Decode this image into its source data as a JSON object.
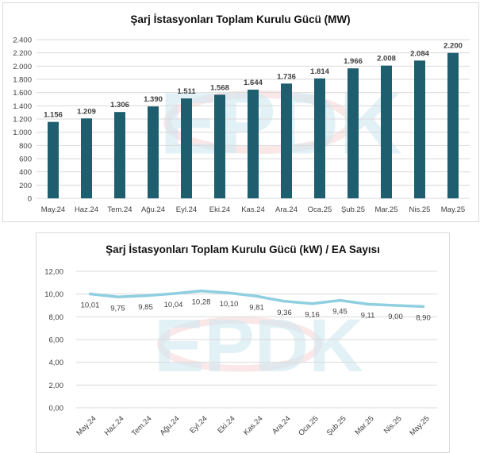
{
  "chart_data": [
    {
      "type": "bar",
      "title": "Şarj İstasyonları Toplam Kurulu Gücü (MW)",
      "categories": [
        "May.24",
        "Haz.24",
        "Tem.24",
        "Ağu.24",
        "Eyl.24",
        "Eki.24",
        "Kas.24",
        "Ara.24",
        "Oca.25",
        "Şub.25",
        "Mar.25",
        "Nis.25",
        "May.25"
      ],
      "values": [
        1156,
        1209,
        1306,
        1390,
        1511,
        1568,
        1644,
        1736,
        1814,
        1966,
        2008,
        2084,
        2200
      ],
      "value_labels": [
        "1.156",
        "1.209",
        "1.306",
        "1.390",
        "1.511",
        "1.568",
        "1.644",
        "1.736",
        "1.814",
        "1.966",
        "2.008",
        "2.084",
        "2.200"
      ],
      "ylim": [
        0,
        2400
      ],
      "yticks": [
        0,
        200,
        400,
        600,
        800,
        1000,
        1200,
        1400,
        1600,
        1800,
        2000,
        2200,
        2400
      ],
      "ytick_labels": [
        "0",
        "200",
        "400",
        "600",
        "800",
        "1.000",
        "1.200",
        "1.400",
        "1.600",
        "1.800",
        "2.000",
        "2.200",
        "2.400"
      ],
      "grid": true,
      "bar_color": "#1f5e6e"
    },
    {
      "type": "line",
      "title": "Şarj İstasyonları Toplam Kurulu Gücü (kW) / EA Sayısı",
      "categories": [
        "May.24",
        "Haz.24",
        "Tem.24",
        "Ağu.24",
        "Eyl.24",
        "Eki.24",
        "Kas.24",
        "Ara.24",
        "Oca.25",
        "Şub.25",
        "Mar.25",
        "Nis.25",
        "May.25"
      ],
      "values": [
        10.01,
        9.75,
        9.85,
        10.04,
        10.28,
        10.1,
        9.81,
        9.36,
        9.16,
        9.45,
        9.11,
        9.0,
        8.9
      ],
      "value_labels": [
        "10,01",
        "9,75",
        "9,85",
        "10,04",
        "10,28",
        "10,10",
        "9,81",
        "9,36",
        "9,16",
        "9,45",
        "9,11",
        "9,00",
        "8,90"
      ],
      "ylim": [
        0,
        12
      ],
      "yticks": [
        0,
        2,
        4,
        6,
        8,
        10,
        12
      ],
      "ytick_labels": [
        "0,00",
        "2,00",
        "4,00",
        "6,00",
        "8,00",
        "10,00",
        "12,00"
      ],
      "grid": true,
      "line_color": "#8fcfe0"
    }
  ],
  "watermark": {
    "text": "EPDK",
    "colors": [
      "#cfe8f1",
      "#f6d6d6"
    ]
  }
}
